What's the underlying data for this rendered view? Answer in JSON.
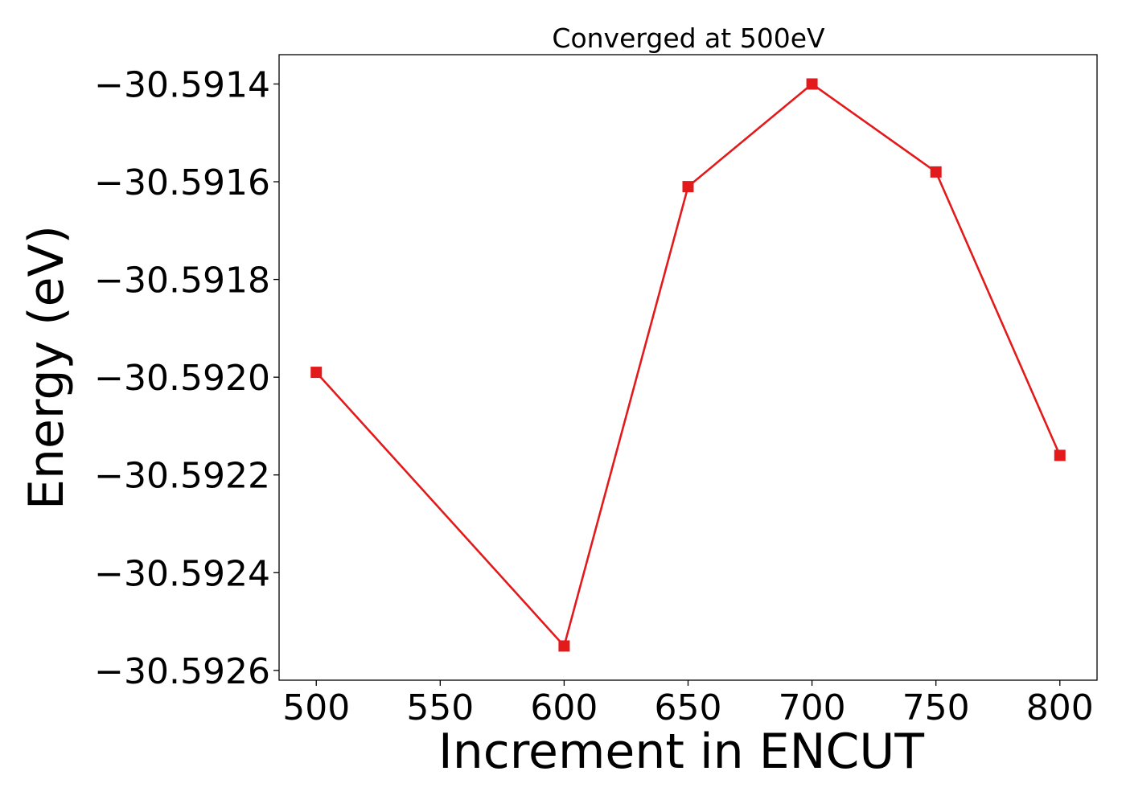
{
  "chart_data": {
    "type": "line",
    "title": "Converged at 500eV",
    "xlabel": "Increment in ENCUT",
    "ylabel": "Energy (eV)",
    "x": [
      500,
      600,
      650,
      700,
      750,
      800
    ],
    "series": [
      {
        "values": [
          -30.59199,
          -30.59255,
          -30.59161,
          -30.5914,
          -30.59158,
          -30.59216
        ],
        "color": "#e31a1c",
        "marker": "square"
      }
    ],
    "xticks": [
      500,
      550,
      600,
      650,
      700,
      750,
      800
    ],
    "xtick_labels": [
      "500",
      "550",
      "600",
      "650",
      "700",
      "750",
      "800"
    ],
    "yticks": [
      -30.5914,
      -30.5916,
      -30.5918,
      -30.592,
      -30.5922,
      -30.5924,
      -30.5926
    ],
    "ytick_labels": [
      "−30.5914",
      "−30.5916",
      "−30.5918",
      "−30.5920",
      "−30.5922",
      "−30.5924",
      "−30.5926"
    ],
    "xlim": [
      485,
      815
    ],
    "ylim": [
      -30.59262,
      -30.59134
    ],
    "grid": false,
    "legend": "none"
  }
}
